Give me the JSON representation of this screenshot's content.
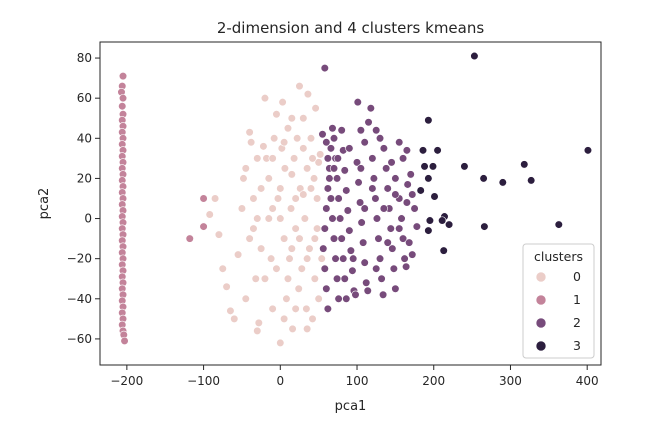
{
  "chart_data": {
    "type": "scatter",
    "title": "2-dimension and 4 clusters kmeans",
    "xlabel": "pca1",
    "ylabel": "pca2",
    "xlim": [
      -235,
      418
    ],
    "ylim": [
      -73,
      88
    ],
    "xticks": [
      -200,
      -100,
      0,
      100,
      200,
      300,
      400
    ],
    "yticks": [
      -60,
      -40,
      -20,
      0,
      20,
      40,
      60,
      80
    ],
    "grid": false,
    "legend": {
      "title": "clusters",
      "placement": "lower-right",
      "entries": [
        "0",
        "1",
        "2",
        "3"
      ]
    },
    "colors": {
      "0": "#ebcdc8",
      "1": "#c3839a",
      "2": "#774b7b",
      "3": "#2c1e3e"
    },
    "series": [
      {
        "name": "0",
        "color": "#ebcdc8",
        "points": [
          [
            -85,
            10
          ],
          [
            -92,
            2
          ],
          [
            -80,
            -8
          ],
          [
            -75,
            -25
          ],
          [
            -70,
            -34
          ],
          [
            -65,
            -46
          ],
          [
            -60,
            -50
          ],
          [
            -55,
            -18
          ],
          [
            -50,
            5
          ],
          [
            -48,
            20
          ],
          [
            -45,
            25
          ],
          [
            -40,
            43
          ],
          [
            -38,
            38
          ],
          [
            -35,
            -5
          ],
          [
            -32,
            -30
          ],
          [
            -30,
            -56
          ],
          [
            -28,
            -52
          ],
          [
            -25,
            15
          ],
          [
            -22,
            36
          ],
          [
            -20,
            60
          ],
          [
            -18,
            30
          ],
          [
            -15,
            0
          ],
          [
            -12,
            -20
          ],
          [
            -10,
            -45
          ],
          [
            -8,
            40
          ],
          [
            -5,
            52
          ],
          [
            -3,
            10
          ],
          [
            0,
            -62
          ],
          [
            2,
            35
          ],
          [
            3,
            58
          ],
          [
            5,
            -10
          ],
          [
            6,
            25
          ],
          [
            8,
            -40
          ],
          [
            10,
            45
          ],
          [
            12,
            -20
          ],
          [
            14,
            5
          ],
          [
            15,
            50
          ],
          [
            16,
            -55
          ],
          [
            18,
            30
          ],
          [
            20,
            -5
          ],
          [
            22,
            40
          ],
          [
            24,
            -35
          ],
          [
            25,
            66
          ],
          [
            26,
            15
          ],
          [
            28,
            -25
          ],
          [
            30,
            50
          ],
          [
            32,
            0
          ],
          [
            34,
            -45
          ],
          [
            35,
            25
          ],
          [
            36,
            62
          ],
          [
            38,
            -15
          ],
          [
            40,
            40
          ],
          [
            42,
            -50
          ],
          [
            44,
            20
          ],
          [
            45,
            -30
          ],
          [
            46,
            55
          ],
          [
            48,
            10
          ],
          [
            50,
            -40
          ],
          [
            52,
            32
          ],
          [
            54,
            -20
          ],
          [
            -40,
            -10
          ],
          [
            -35,
            10
          ],
          [
            -30,
            30
          ],
          [
            -20,
            -30
          ],
          [
            -15,
            20
          ],
          [
            -10,
            5
          ],
          [
            -5,
            -25
          ],
          [
            0,
            15
          ],
          [
            5,
            38
          ],
          [
            10,
            -30
          ],
          [
            15,
            22
          ],
          [
            20,
            -45
          ],
          [
            25,
            -10
          ],
          [
            30,
            35
          ],
          [
            35,
            -55
          ],
          [
            40,
            15
          ],
          [
            45,
            -10
          ],
          [
            50,
            28
          ],
          [
            -45,
            -40
          ],
          [
            -25,
            -15
          ],
          [
            -10,
            30
          ],
          [
            5,
            -50
          ],
          [
            20,
            10
          ],
          [
            35,
            -20
          ],
          [
            48,
            -5
          ],
          [
            -30,
            0
          ],
          [
            0,
            0
          ],
          [
            15,
            -15
          ],
          [
            30,
            12
          ],
          [
            42,
            30
          ]
        ]
      },
      {
        "name": "1",
        "color": "#c3839a",
        "points": [
          [
            -205,
            71
          ],
          [
            -206,
            66
          ],
          [
            -207,
            63
          ],
          [
            -205,
            60
          ],
          [
            -206,
            56
          ],
          [
            -205,
            52
          ],
          [
            -206,
            49
          ],
          [
            -205,
            46
          ],
          [
            -206,
            43
          ],
          [
            -205,
            40
          ],
          [
            -206,
            37
          ],
          [
            -205,
            34
          ],
          [
            -206,
            31
          ],
          [
            -205,
            28
          ],
          [
            -206,
            25
          ],
          [
            -205,
            22
          ],
          [
            -206,
            19
          ],
          [
            -205,
            16
          ],
          [
            -206,
            13
          ],
          [
            -205,
            10
          ],
          [
            -206,
            7
          ],
          [
            -205,
            4
          ],
          [
            -206,
            1
          ],
          [
            -205,
            -2
          ],
          [
            -206,
            -5
          ],
          [
            -205,
            -8
          ],
          [
            -206,
            -11
          ],
          [
            -205,
            -14
          ],
          [
            -206,
            -17
          ],
          [
            -205,
            -20
          ],
          [
            -206,
            -23
          ],
          [
            -205,
            -26
          ],
          [
            -206,
            -29
          ],
          [
            -205,
            -32
          ],
          [
            -206,
            -35
          ],
          [
            -205,
            -38
          ],
          [
            -206,
            -41
          ],
          [
            -205,
            -44
          ],
          [
            -206,
            -47
          ],
          [
            -205,
            -50
          ],
          [
            -206,
            -53
          ],
          [
            -205,
            -56
          ],
          [
            -204,
            -58
          ],
          [
            -203,
            -61
          ],
          [
            -100,
            10
          ],
          [
            -100,
            -4
          ],
          [
            -118,
            -10
          ]
        ]
      },
      {
        "name": "2",
        "color": "#774b7b",
        "points": [
          [
            58,
            75
          ],
          [
            55,
            42
          ],
          [
            60,
            38
          ],
          [
            62,
            30
          ],
          [
            64,
            20
          ],
          [
            66,
            10
          ],
          [
            68,
            0
          ],
          [
            70,
            -10
          ],
          [
            72,
            -20
          ],
          [
            74,
            -30
          ],
          [
            76,
            -40
          ],
          [
            62,
            -45
          ],
          [
            60,
            -35
          ],
          [
            58,
            -25
          ],
          [
            56,
            -15
          ],
          [
            58,
            -5
          ],
          [
            60,
            5
          ],
          [
            62,
            15
          ],
          [
            64,
            25
          ],
          [
            66,
            35
          ],
          [
            68,
            45
          ],
          [
            70,
            40
          ],
          [
            72,
            30
          ],
          [
            74,
            20
          ],
          [
            76,
            10
          ],
          [
            78,
            0
          ],
          [
            80,
            -10
          ],
          [
            82,
            -20
          ],
          [
            84,
            -30
          ],
          [
            86,
            -40
          ],
          [
            80,
            44
          ],
          [
            82,
            34
          ],
          [
            84,
            24
          ],
          [
            86,
            14
          ],
          [
            88,
            4
          ],
          [
            90,
            -6
          ],
          [
            92,
            -16
          ],
          [
            94,
            -26
          ],
          [
            96,
            -36
          ],
          [
            98,
            -38
          ],
          [
            100,
            28
          ],
          [
            102,
            18
          ],
          [
            104,
            8
          ],
          [
            106,
            -2
          ],
          [
            108,
            -12
          ],
          [
            110,
            -22
          ],
          [
            112,
            -32
          ],
          [
            114,
            -36
          ],
          [
            101,
            58
          ],
          [
            105,
            44
          ],
          [
            110,
            38
          ],
          [
            115,
            48
          ],
          [
            118,
            55
          ],
          [
            120,
            30
          ],
          [
            122,
            20
          ],
          [
            124,
            10
          ],
          [
            126,
            0
          ],
          [
            128,
            -10
          ],
          [
            130,
            -20
          ],
          [
            132,
            -30
          ],
          [
            134,
            -38
          ],
          [
            125,
            44
          ],
          [
            130,
            40
          ],
          [
            135,
            35
          ],
          [
            138,
            25
          ],
          [
            140,
            15
          ],
          [
            142,
            5
          ],
          [
            144,
            -5
          ],
          [
            146,
            -15
          ],
          [
            148,
            -25
          ],
          [
            150,
            -35
          ],
          [
            145,
            28
          ],
          [
            150,
            20
          ],
          [
            155,
            10
          ],
          [
            158,
            0
          ],
          [
            160,
            -10
          ],
          [
            162,
            -20
          ],
          [
            164,
            -24
          ],
          [
            165,
            8
          ],
          [
            166,
            17
          ],
          [
            165,
            34
          ],
          [
            155,
            38
          ],
          [
            160,
            30
          ],
          [
            170,
            22
          ],
          [
            172,
            12
          ],
          [
            175,
            5
          ],
          [
            178,
            -4
          ],
          [
            168,
            -12
          ],
          [
            172,
            -18
          ],
          [
            150,
            12
          ],
          [
            135,
            5
          ],
          [
            120,
            15
          ],
          [
            105,
            25
          ],
          [
            90,
            35
          ],
          [
            75,
            30
          ],
          [
            70,
            25
          ],
          [
            95,
            -20
          ],
          [
            110,
            5
          ],
          [
            125,
            -25
          ],
          [
            140,
            -12
          ],
          [
            155,
            -5
          ]
        ]
      },
      {
        "name": "3",
        "color": "#2c1e3e",
        "points": [
          [
            253,
            81
          ],
          [
            193,
            49
          ],
          [
            186,
            34
          ],
          [
            205,
            34
          ],
          [
            188,
            26
          ],
          [
            199,
            26
          ],
          [
            240,
            26
          ],
          [
            193,
            20
          ],
          [
            183,
            14
          ],
          [
            201,
            11
          ],
          [
            265,
            20
          ],
          [
            290,
            18
          ],
          [
            318,
            27
          ],
          [
            327,
            19
          ],
          [
            401,
            34
          ],
          [
            214,
            1
          ],
          [
            195,
            -1
          ],
          [
            211,
            -1
          ],
          [
            220,
            -3
          ],
          [
            266,
            -4
          ],
          [
            193,
            -6
          ],
          [
            213,
            -16
          ],
          [
            363,
            -3
          ]
        ]
      }
    ]
  }
}
